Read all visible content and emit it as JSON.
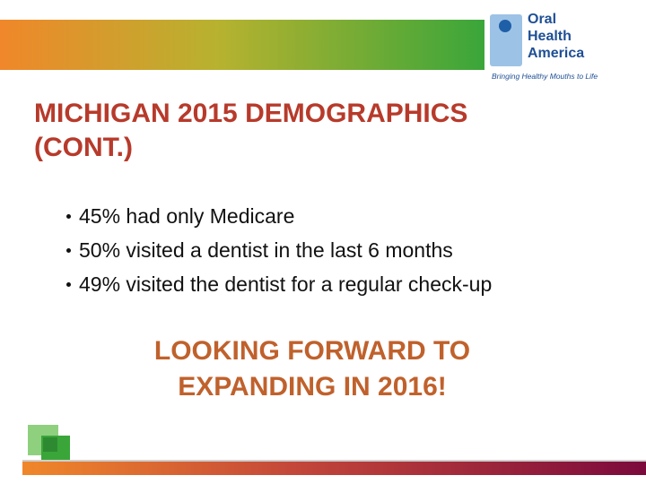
{
  "logo": {
    "name": [
      "Oral",
      "Health",
      "America"
    ],
    "tagline": "Bringing Healthy Mouths to Life"
  },
  "title": [
    "MICHIGAN 2015 DEMOGRAPHICS",
    "(CONT.)"
  ],
  "bullets": [
    "45% had only Medicare",
    "50% visited a dentist in the last 6 months",
    "49% visited the dentist for a regular check-up"
  ],
  "callout": [
    "LOOKING FORWARD TO",
    "EXPANDING IN 2016!"
  ]
}
